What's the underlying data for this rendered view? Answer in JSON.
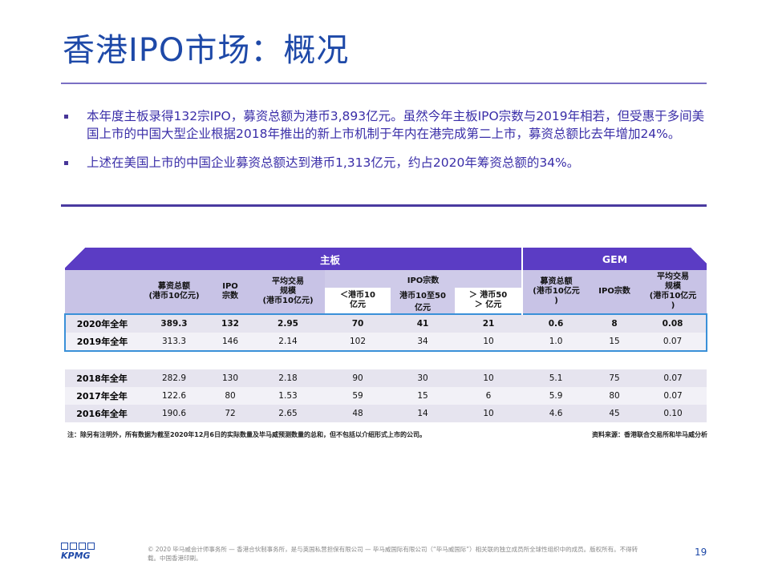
{
  "title": "香港IPO市场：概况",
  "bullets": [
    "本年度主板录得132宗IPO，募资总额为港币3,893亿元。虽然今年主板IPO宗数与2019年相若，但受惠于多间美国上市的中国大型企业根据2018年推出的新上市机制于年内在港完成第二上市，募资总额比去年增加24%。",
    "上述在美国上市的中国企业募资总额达到港币1,313亿元，约占2020年筹资总额的34%。"
  ],
  "table": {
    "group_main": "主板",
    "group_gem": "GEM",
    "col_main_proceeds": "募资总额\n(港币10亿元)",
    "col_main_count": "IPO\n宗数",
    "col_main_avg": "平均交易\n规模\n(港币10亿元)",
    "col_ipo_count": "IPO宗数",
    "col_lt10": "＜港币10\n亿元",
    "col_10to50": "港币10至50\n亿元",
    "col_gt50": "＞ 港币50\n＞ 亿元",
    "col_gem_proceeds": "募资总额\n(港币10亿元\n)",
    "col_gem_count": "IPO宗数",
    "col_gem_avg": "平均交易\n规模\n(港币10亿元\n)",
    "rows": [
      {
        "label": "2020年全年",
        "v": [
          "389.3",
          "132",
          "2.95",
          "70",
          "41",
          "21",
          "0.6",
          "8",
          "0.08"
        ]
      },
      {
        "label": "2019年全年",
        "v": [
          "313.3",
          "146",
          "2.14",
          "102",
          "34",
          "10",
          "1.0",
          "15",
          "0.07"
        ]
      },
      {
        "label": "2018年全年",
        "v": [
          "282.9",
          "130",
          "2.18",
          "90",
          "30",
          "10",
          "5.1",
          "75",
          "0.07"
        ]
      },
      {
        "label": "2017年全年",
        "v": [
          "122.6",
          "80",
          "1.53",
          "59",
          "15",
          "6",
          "5.9",
          "80",
          "0.07"
        ]
      },
      {
        "label": "2016年全年",
        "v": [
          "190.6",
          "72",
          "2.65",
          "48",
          "14",
          "10",
          "4.6",
          "45",
          "0.10"
        ]
      }
    ]
  },
  "note": "注：除另有注明外，所有数据为截至2020年12月6日的实际数量及毕马威预测数量的总和，但不包括以介绍形式上市的公司。",
  "source": "资料来源：香港联合交易所和毕马威分析",
  "footer": "© 2020 毕马威会计师事务所 — 香港合伙制事务所，是与英国私营担保有限公司 — 毕马威国际有限公司（“毕马威国际”）相关联的独立成员所全球性组织中的成员。版权所有。不得转载。中国香港印刷。",
  "page_number": "19",
  "logo_text": "KPMG",
  "colors": {
    "title": "#1e49a8",
    "header": "#5b3cc4",
    "subheader": "#c8c3e6",
    "highlight": "#3a90d8"
  }
}
